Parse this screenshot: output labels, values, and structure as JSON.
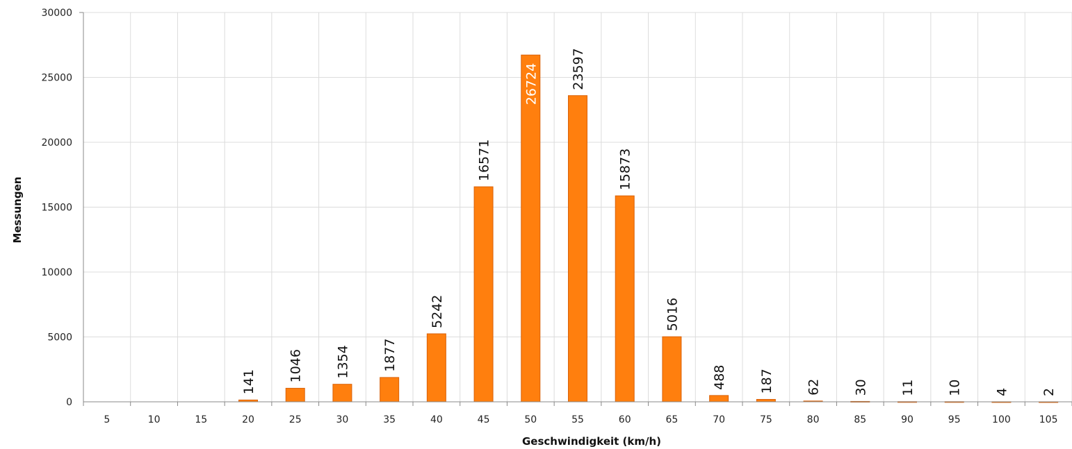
{
  "chart_data": {
    "type": "bar",
    "xlabel": "Geschwindigkeit (km/h)",
    "ylabel": "Messungen",
    "ylim": [
      0,
      30000
    ],
    "yticks": [
      0,
      5000,
      10000,
      15000,
      20000,
      25000,
      30000
    ],
    "grid": true,
    "bar_color": "#ff7f0e",
    "categories": [
      "5",
      "10",
      "15",
      "20",
      "25",
      "30",
      "35",
      "40",
      "45",
      "50",
      "55",
      "60",
      "65",
      "70",
      "75",
      "80",
      "85",
      "90",
      "95",
      "100",
      "105"
    ],
    "values": [
      0,
      0,
      0,
      141,
      1046,
      1354,
      1877,
      5242,
      16571,
      26724,
      23597,
      15873,
      5016,
      488,
      187,
      62,
      30,
      11,
      10,
      4,
      2
    ],
    "data_labels": [
      "",
      "",
      "",
      "141",
      "1046",
      "1354",
      "1877",
      "5242",
      "16571",
      "26724",
      "23597",
      "15873",
      "5016",
      "488",
      "187",
      "62",
      "30",
      "11",
      "10",
      "4",
      "2"
    ]
  }
}
